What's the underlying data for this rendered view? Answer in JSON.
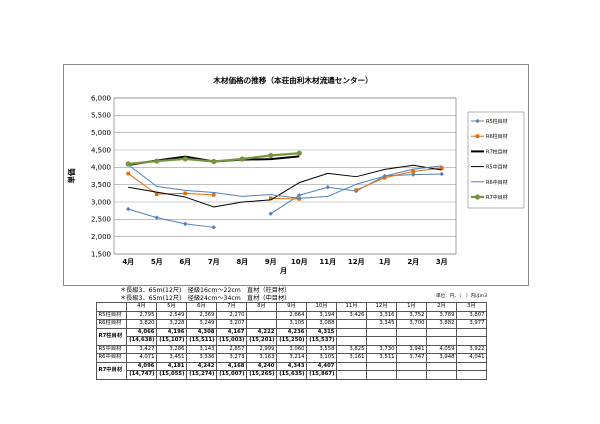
{
  "chart_data": {
    "type": "line",
    "title": "木材価格の推移（本荘由利木材流通センター）",
    "xlabel": "月",
    "ylabel": "単価",
    "categories": [
      "4月",
      "5月",
      "6月",
      "7月",
      "8月",
      "9月",
      "10月",
      "11月",
      "12月",
      "1月",
      "2月",
      "3月"
    ],
    "y_ticks": [
      "1,500",
      "2,000",
      "2,500",
      "3,000",
      "3,500",
      "4,000",
      "4,500",
      "5,000",
      "5,500",
      "6,000"
    ],
    "ylim": [
      1500,
      6000
    ],
    "legend_position": "right",
    "grid": true,
    "series": [
      {
        "name": "R5柱目材",
        "color": "#4f81bd",
        "width": 1,
        "marker": "diamond",
        "values": [
          2795,
          2549,
          2369,
          2270,
          null,
          2664,
          3194,
          3426,
          3316,
          3752,
          3789,
          3807
        ]
      },
      {
        "name": "R6柱目材",
        "color": "#e46c0a",
        "width": 1,
        "marker": "square",
        "values": [
          3820,
          3228,
          3249,
          3207,
          null,
          3105,
          3088,
          null,
          3345,
          3700,
          3882,
          3977
        ]
      },
      {
        "name": "R7柱目材",
        "color": "#000000",
        "width": 2,
        "marker": "none",
        "values": [
          4066,
          4196,
          4308,
          4167,
          4222,
          4236,
          4315,
          null,
          null,
          null,
          null,
          null
        ]
      },
      {
        "name": "R5中目材",
        "color": "#000000",
        "width": 1,
        "marker": "none",
        "values": [
          3427,
          3286,
          3143,
          2857,
          2999,
          3060,
          3558,
          3825,
          3730,
          3941,
          4059,
          3922
        ]
      },
      {
        "name": "R6中目材",
        "color": "#4f81bd",
        "width": 1,
        "marker": "none",
        "values": [
          4071,
          3451,
          3336,
          3273,
          3163,
          3214,
          3105,
          3161,
          3511,
          3747,
          3948,
          4041
        ]
      },
      {
        "name": "R7中目材",
        "color": "#77933c",
        "width": 2.2,
        "marker": "circle",
        "values": [
          4096,
          4181,
          4242,
          4168,
          4240,
          4343,
          4407,
          null,
          null,
          null,
          null,
          null
        ]
      }
    ]
  },
  "notes": {
    "line1": "＊長級3．65m(12尺)　径級16cm～22cm　直材（柱目材）",
    "line2": "＊長級3．65m(12尺)　径級24cm～34cm　直材（中目材）",
    "unit": "単位：円、（　）内はm3"
  },
  "table": {
    "months": [
      "4月",
      "5月",
      "6月",
      "7月",
      "8月",
      "9月",
      "10月",
      "11月",
      "12月",
      "1月",
      "2月",
      "3月"
    ],
    "rows": [
      {
        "label": "R5柱目材",
        "cells": [
          "2,795",
          "2,549",
          "2,369",
          "2,270",
          "",
          "2,664",
          "3,194",
          "3,426",
          "3,316",
          "3,752",
          "3,789",
          "3,807"
        ]
      },
      {
        "label": "R6柱目材",
        "cells": [
          "3,820",
          "3,228",
          "3,249",
          "3,207",
          "",
          "3,105",
          "3,088",
          "",
          "3,345",
          "3,700",
          "3,882",
          "3,977"
        ]
      },
      {
        "label": "R7柱目材",
        "cells": [
          "4,066",
          "4,196",
          "4,308",
          "4,167",
          "4,222",
          "4,236",
          "4,315",
          "",
          "",
          "",
          "",
          ""
        ],
        "sub": [
          "(14,638)",
          "(15,107)",
          "(15,511)",
          "(15,003)",
          "(15,201)",
          "(15,250)",
          "(15,537)",
          "",
          "",
          "",
          "",
          ""
        ]
      },
      {
        "label": "R5中目材",
        "cells": [
          "3,427",
          "3,286",
          "3,143",
          "2,857",
          "2,999",
          "3,060",
          "3,558",
          "3,825",
          "3,730",
          "3,941",
          "4,059",
          "3,922"
        ]
      },
      {
        "label": "R6中目材",
        "cells": [
          "4,071",
          "3,451",
          "3,336",
          "3,273",
          "3,163",
          "3,214",
          "3,105",
          "3,161",
          "3,511",
          "3,747",
          "3,948",
          "4,041"
        ]
      },
      {
        "label": "R7中目材",
        "cells": [
          "4,096",
          "4,181",
          "4,242",
          "4,168",
          "4,240",
          "4,343",
          "4,407",
          "",
          "",
          "",
          "",
          ""
        ],
        "sub": [
          "(14,747)",
          "(15,055)",
          "(15,274)",
          "(15,007)",
          "(15,265)",
          "(15,635)",
          "(15,867)",
          "",
          "",
          "",
          "",
          ""
        ]
      }
    ]
  }
}
